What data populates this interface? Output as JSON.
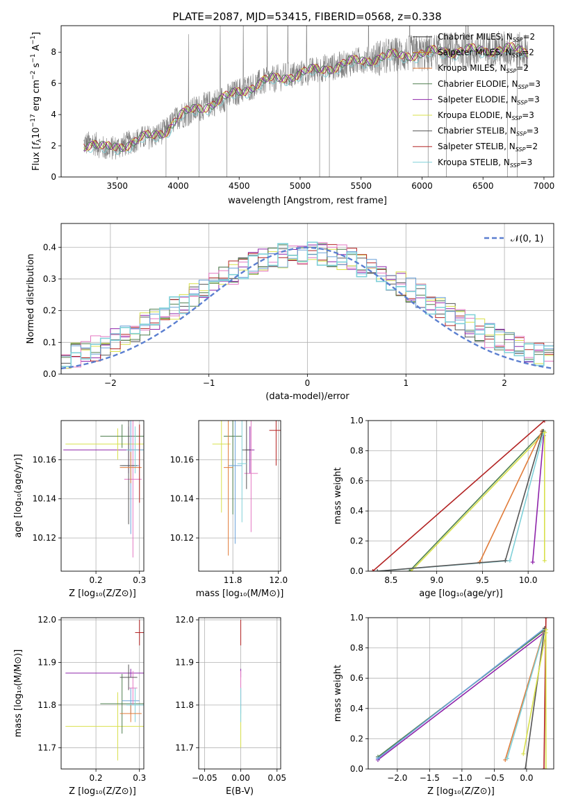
{
  "figure_title": "PLATE=2087, MJD=53415, FIBERID=0568, z=0.338",
  "colors": {
    "Chabrier MILES": "#1f1f1f",
    "Salpeter MILES": "#c47a2a",
    "Kroupa MILES": "#e07b39",
    "Chabrier ELODIE": "#4f7f4f",
    "Salpeter ELODIE": "#8e24aa",
    "Kroupa ELODIE": "#d8e04a",
    "Chabrier STELIB": "#555555",
    "Salpeter STELIB": "#b22222",
    "Kroupa STELIB": "#7fd0d8",
    "pink": "#e377c2",
    "blue": "#6aa0d8",
    "data": "#808080",
    "normal": "#5b7fd0"
  },
  "chart_data": [
    {
      "id": "spectrum",
      "type": "line",
      "xlabel": "wavelength [Angstrom, rest frame]",
      "ylabel": "Flux [f_λ 10^-17 erg cm^-2 s^-1 A^-1]",
      "xlim": [
        3040,
        7080
      ],
      "ylim": [
        0,
        9.7
      ],
      "xticks": [
        3500,
        4000,
        4500,
        5000,
        5500,
        6000,
        6500,
        7000
      ],
      "yticks": [
        0,
        2,
        4,
        6,
        8
      ],
      "legend_position": "top-right",
      "legend": [
        {
          "text": "Chabrier MILES, N",
          "sub": "SSP",
          "suffix": "=2",
          "color": "#1f1f1f"
        },
        {
          "text": "Salpeter MILES, N",
          "sub": "SSP",
          "suffix": "=2",
          "color": "#c47a2a"
        },
        {
          "text": "Kroupa MILES, N",
          "sub": "SSP",
          "suffix": "=2",
          "color": "#e07b39"
        },
        {
          "text": "Chabrier ELODIE, N",
          "sub": "SSP",
          "suffix": "=3",
          "color": "#4f7f4f"
        },
        {
          "text": "Salpeter ELODIE, N",
          "sub": "SSP",
          "suffix": "=3",
          "color": "#8e24aa"
        },
        {
          "text": "Kroupa ELODIE, N",
          "sub": "SSP",
          "suffix": "=3",
          "color": "#d8e04a"
        },
        {
          "text": "Chabrier STELIB, N",
          "sub": "SSP",
          "suffix": "=3",
          "color": "#555555"
        },
        {
          "text": "Salpeter STELIB, N",
          "sub": "SSP",
          "suffix": "=2",
          "color": "#b22222"
        },
        {
          "text": "Kroupa STELIB, N",
          "sub": "SSP",
          "suffix": "=3",
          "color": "#7fd0d8"
        }
      ],
      "continuum": [
        [
          3225,
          2.1
        ],
        [
          3300,
          2.2
        ],
        [
          3400,
          1.8
        ],
        [
          3500,
          1.9
        ],
        [
          3600,
          2.2
        ],
        [
          3700,
          2.5
        ],
        [
          3800,
          2.6
        ],
        [
          3900,
          3.0
        ],
        [
          4000,
          3.9
        ],
        [
          4100,
          4.2
        ],
        [
          4200,
          4.5
        ],
        [
          4300,
          4.8
        ],
        [
          4400,
          5.1
        ],
        [
          4500,
          5.5
        ],
        [
          4600,
          5.8
        ],
        [
          4700,
          6.1
        ],
        [
          4800,
          6.3
        ],
        [
          4900,
          6.5
        ],
        [
          5000,
          6.6
        ],
        [
          5100,
          6.8
        ],
        [
          5200,
          7.0
        ],
        [
          5300,
          7.1
        ],
        [
          5400,
          7.3
        ],
        [
          5500,
          7.5
        ],
        [
          5600,
          7.6
        ],
        [
          5700,
          7.7
        ],
        [
          5800,
          7.8
        ],
        [
          5900,
          7.9
        ],
        [
          6000,
          7.9
        ],
        [
          6100,
          8.0
        ],
        [
          6200,
          8.1
        ],
        [
          6300,
          8.1
        ],
        [
          6400,
          8.1
        ],
        [
          6500,
          8.1
        ],
        [
          6600,
          8.2
        ],
        [
          6700,
          8.2
        ],
        [
          6800,
          8.1
        ],
        [
          6870,
          8.0
        ]
      ]
    },
    {
      "id": "residuals",
      "type": "line",
      "xlabel": "(data-model)/error",
      "ylabel": "Normed distribution",
      "xlim": [
        -2.5,
        2.5
      ],
      "ylim": [
        0,
        0.475
      ],
      "xticks": [
        -2,
        -1,
        0,
        1,
        2
      ],
      "yticks": [
        0.0,
        0.1,
        0.2,
        0.3,
        0.4
      ],
      "legend_position": "top-right",
      "legend": [
        {
          "text": "𝒩(0, 1)",
          "color": "#5b7fd0",
          "dashed": true
        }
      ],
      "normal_curve": {
        "mean": 0,
        "sigma": 1
      }
    },
    {
      "id": "age-vs-Z",
      "type": "scatter",
      "xlabel": "Z [log10(Z/Z⊙)]",
      "ylabel": "age [log10(age/yr)]",
      "xlim": [
        0.12,
        0.31
      ],
      "ylim": [
        10.103,
        10.18
      ],
      "xticks": [
        0.2,
        0.3
      ],
      "yticks": [
        10.12,
        10.14,
        10.16
      ],
      "points": [
        {
          "x": 0.275,
          "y": 10.165,
          "xerr": 0.15,
          "yerr": 0.012,
          "color": "#8e24aa"
        },
        {
          "x": 0.25,
          "y": 10.168,
          "xerr": 0.12,
          "yerr": 0.008,
          "color": "#d8e04a"
        },
        {
          "x": 0.26,
          "y": 10.172,
          "xerr": 0.05,
          "yerr": 0.006,
          "color": "#4f7f4f"
        },
        {
          "x": 0.28,
          "y": 10.157,
          "xerr": 0.02,
          "yerr": 0.035,
          "color": "#6aa0d8"
        },
        {
          "x": 0.285,
          "y": 10.15,
          "xerr": 0.02,
          "yerr": 0.04,
          "color": "#e377c2"
        },
        {
          "x": 0.275,
          "y": 10.157,
          "xerr": 0.02,
          "yerr": 0.03,
          "color": "#555555"
        },
        {
          "x": 0.29,
          "y": 10.165,
          "xerr": 0.02,
          "yerr": 0.012,
          "color": "#7fd0d8"
        },
        {
          "x": 0.28,
          "y": 10.156,
          "xerr": 0.025,
          "yerr": 0.008,
          "color": "#e07b39"
        },
        {
          "x": 0.3,
          "y": 10.158,
          "xerr": 0.0,
          "yerr": 0.02,
          "color": "#b22222"
        }
      ]
    },
    {
      "id": "age-vs-mass",
      "type": "scatter",
      "xlabel": "mass [log10(M/M⊙)]",
      "ylabel": "",
      "xlim": [
        11.65,
        12.01
      ],
      "ylim": [
        10.103,
        10.18
      ],
      "xticks": [
        11.8,
        12.0
      ],
      "yticks": [
        10.12,
        10.14,
        10.16
      ],
      "points": [
        {
          "x": 11.875,
          "y": 10.165,
          "xerr": 0.02,
          "yerr": 0.012,
          "color": "#8e24aa"
        },
        {
          "x": 11.75,
          "y": 10.168,
          "xerr": 0.04,
          "yerr": 0.035,
          "color": "#d8e04a"
        },
        {
          "x": 11.8,
          "y": 10.172,
          "xerr": 0.04,
          "yerr": 0.04,
          "color": "#4f7f4f"
        },
        {
          "x": 11.81,
          "y": 10.157,
          "xerr": 0.03,
          "yerr": 0.04,
          "color": "#6aa0d8"
        },
        {
          "x": 11.88,
          "y": 10.153,
          "xerr": 0.03,
          "yerr": 0.03,
          "color": "#e377c2"
        },
        {
          "x": 11.86,
          "y": 10.165,
          "xerr": 0.02,
          "yerr": 0.02,
          "color": "#555555"
        },
        {
          "x": 11.84,
          "y": 10.158,
          "xerr": 0.02,
          "yerr": 0.03,
          "color": "#7fd0d8"
        },
        {
          "x": 11.78,
          "y": 10.156,
          "xerr": 0.02,
          "yerr": 0.045,
          "color": "#e07b39"
        },
        {
          "x": 11.99,
          "y": 10.175,
          "xerr": 0.03,
          "yerr": 0.018,
          "color": "#b22222"
        }
      ]
    },
    {
      "id": "mass-weight-vs-age",
      "type": "line",
      "xlabel": "age [log10(age/yr)]",
      "ylabel": "mass weight",
      "xlim": [
        8.25,
        10.28
      ],
      "ylim": [
        0,
        1.0
      ],
      "xticks": [
        8.5,
        9.0,
        9.5,
        10.0
      ],
      "yticks": [
        0.0,
        0.2,
        0.4,
        0.6,
        0.8,
        1.0
      ],
      "series": [
        {
          "color": "#b22222",
          "points": [
            [
              8.3,
              0.0
            ],
            [
              10.18,
              1.0
            ]
          ]
        },
        {
          "color": "#4f7f4f",
          "points": [
            [
              8.7,
              0.0
            ],
            [
              10.17,
              0.93
            ]
          ]
        },
        {
          "color": "#d8e04a",
          "points": [
            [
              8.72,
              0.0
            ],
            [
              10.18,
              0.92
            ]
          ]
        },
        {
          "color": "#e07b39",
          "points": [
            [
              9.47,
              0.06
            ],
            [
              10.15,
              0.93
            ]
          ]
        },
        {
          "color": "#8e24aa",
          "points": [
            [
              10.05,
              0.06
            ],
            [
              10.17,
              0.9
            ]
          ]
        },
        {
          "color": "#7fd0d8",
          "points": [
            [
              8.35,
              0.0
            ],
            [
              9.8,
              0.07
            ],
            [
              10.17,
              0.92
            ]
          ]
        },
        {
          "color": "#555555",
          "points": [
            [
              8.35,
              0.0
            ],
            [
              9.75,
              0.07
            ],
            [
              10.16,
              0.93
            ]
          ]
        },
        {
          "color": "#d8e04a",
          "points": [
            [
              10.18,
              0.92
            ],
            [
              10.18,
              0.07
            ]
          ]
        }
      ]
    },
    {
      "id": "mass-vs-Z",
      "type": "scatter",
      "xlabel": "Z [log10(Z/Z⊙)]",
      "ylabel": "mass [log10(M/M⊙)]",
      "xlim": [
        0.12,
        0.31
      ],
      "ylim": [
        11.65,
        12.005
      ],
      "xticks": [
        0.2,
        0.3
      ],
      "yticks": [
        11.7,
        11.8,
        11.9,
        12.0
      ],
      "points": [
        {
          "x": 0.28,
          "y": 11.875,
          "xerr": 0.15,
          "yerr": 0.01,
          "color": "#8e24aa"
        },
        {
          "x": 0.25,
          "y": 11.75,
          "xerr": 0.12,
          "yerr": 0.08,
          "color": "#d8e04a"
        },
        {
          "x": 0.26,
          "y": 11.803,
          "xerr": 0.05,
          "yerr": 0.07,
          "color": "#4f7f4f"
        },
        {
          "x": 0.28,
          "y": 11.81,
          "xerr": 0.02,
          "yerr": 0.03,
          "color": "#6aa0d8"
        },
        {
          "x": 0.285,
          "y": 11.84,
          "xerr": 0.01,
          "yerr": 0.04,
          "color": "#e377c2"
        },
        {
          "x": 0.275,
          "y": 11.865,
          "xerr": 0.02,
          "yerr": 0.03,
          "color": "#555555"
        },
        {
          "x": 0.29,
          "y": 11.8,
          "xerr": 0.02,
          "yerr": 0.04,
          "color": "#7fd0d8"
        },
        {
          "x": 0.28,
          "y": 11.78,
          "xerr": 0.025,
          "yerr": 0.02,
          "color": "#e07b39"
        },
        {
          "x": 0.3,
          "y": 11.97,
          "xerr": 0.01,
          "yerr": 0.03,
          "color": "#b22222"
        }
      ]
    },
    {
      "id": "mass-vs-ebv",
      "type": "scatter",
      "xlabel": "E(B-V)",
      "ylabel": "",
      "xlim": [
        -0.058,
        0.055
      ],
      "ylim": [
        11.65,
        12.005
      ],
      "xticks": [
        -0.05,
        0.0,
        0.05
      ],
      "xticklabels": [
        "−0.05",
        "0.00",
        "0.05"
      ],
      "yticks": [
        11.7,
        11.8,
        11.9,
        12.0
      ],
      "points": [
        {
          "x": 0.0,
          "y": 11.875,
          "xerr": 0.0,
          "yerr": 0.01,
          "color": "#8e24aa"
        },
        {
          "x": 0.0,
          "y": 11.75,
          "xerr": 0.0,
          "yerr": 0.05,
          "color": "#d8e04a"
        },
        {
          "x": 0.0,
          "y": 11.81,
          "xerr": 0.0,
          "yerr": 0.03,
          "color": "#6aa0d8"
        },
        {
          "x": 0.0,
          "y": 11.84,
          "xerr": 0.0,
          "yerr": 0.04,
          "color": "#e377c2"
        },
        {
          "x": 0.0,
          "y": 11.8,
          "xerr": 0.0,
          "yerr": 0.04,
          "color": "#7fd0d8"
        },
        {
          "x": 0.0,
          "y": 11.97,
          "xerr": 0.0,
          "yerr": 0.03,
          "color": "#b22222"
        }
      ]
    },
    {
      "id": "mass-weight-vs-Z",
      "type": "line",
      "xlabel": "Z [log10(Z/Z⊙)]",
      "ylabel": "mass weight",
      "xlim": [
        -2.45,
        0.42
      ],
      "ylim": [
        0,
        1.0
      ],
      "xticks": [
        -2.0,
        -1.5,
        -1.0,
        -0.5,
        0.0
      ],
      "xticklabels": [
        "−2.0",
        "−1.5",
        "−1.0",
        "−0.5",
        "0.0"
      ],
      "yticks": [
        0.0,
        0.2,
        0.4,
        0.6,
        0.8,
        1.0
      ],
      "series": [
        {
          "color": "#4f7f4f",
          "points": [
            [
              -2.3,
              0.08
            ],
            [
              0.28,
              0.92
            ]
          ]
        },
        {
          "color": "#8e24aa",
          "points": [
            [
              -2.3,
              0.06
            ],
            [
              0.27,
              0.9
            ]
          ]
        },
        {
          "color": "#6aa0d8",
          "points": [
            [
              -2.3,
              0.07
            ],
            [
              0.28,
              0.93
            ]
          ]
        },
        {
          "color": "#e07b39",
          "points": [
            [
              -0.33,
              0.06
            ],
            [
              0.28,
              0.93
            ]
          ]
        },
        {
          "color": "#7fd0d8",
          "points": [
            [
              -0.3,
              0.07
            ],
            [
              0.28,
              0.92
            ]
          ]
        },
        {
          "color": "#555555",
          "points": [
            [
              -0.02,
              0.0
            ],
            [
              0.28,
              0.93
            ]
          ]
        },
        {
          "color": "#b22222",
          "points": [
            [
              0.27,
              0.0
            ],
            [
              0.3,
              1.0
            ]
          ]
        },
        {
          "color": "#d8e04a",
          "points": [
            [
              0.3,
              0.92
            ],
            [
              0.3,
              0.0
            ]
          ]
        },
        {
          "color": "#d8e04a",
          "points": [
            [
              -0.05,
              0.1
            ],
            [
              0.3,
              0.9
            ]
          ]
        }
      ]
    }
  ]
}
